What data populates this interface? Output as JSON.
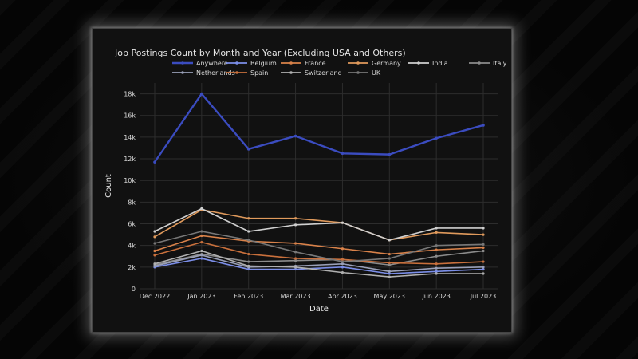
{
  "chart_data": {
    "type": "line",
    "title": "Job Postings Count by Month and Year (Excluding USA and Others)",
    "xlabel": "Date",
    "ylabel": "Count",
    "categories": [
      "Dec 2022",
      "Jan 2023",
      "Feb 2023",
      "Mar 2023",
      "Apr 2023",
      "May 2023",
      "Jun 2023",
      "Jul 2023"
    ],
    "ylim": [
      0,
      19000
    ],
    "yticks": [
      0,
      2000,
      4000,
      6000,
      8000,
      10000,
      12000,
      14000,
      16000,
      18000
    ],
    "ytick_labels": [
      "0",
      "2k",
      "4k",
      "6k",
      "8k",
      "10k",
      "12k",
      "14k",
      "16k",
      "18k"
    ],
    "grid": true,
    "legend_position": "top",
    "background": "#111111",
    "series": [
      {
        "name": "Anywhere",
        "color": "#3b4cc0",
        "values": [
          11700,
          18000,
          12900,
          14100,
          12500,
          12400,
          13900,
          15100
        ]
      },
      {
        "name": "Belgium",
        "color": "#7b8ee8",
        "values": [
          2000,
          2800,
          1800,
          1800,
          2000,
          1400,
          1600,
          1800
        ]
      },
      {
        "name": "France",
        "color": "#d9824a",
        "values": [
          3500,
          4900,
          4400,
          4200,
          3700,
          3200,
          3600,
          3800
        ]
      },
      {
        "name": "Germany",
        "color": "#e09a5c",
        "values": [
          4800,
          7300,
          6500,
          6500,
          6100,
          4500,
          5200,
          5000
        ]
      },
      {
        "name": "India",
        "color": "#cfcfcf",
        "values": [
          5300,
          7400,
          5300,
          5900,
          6100,
          4500,
          5600,
          5600
        ]
      },
      {
        "name": "Italy",
        "color": "#8c8c8c",
        "values": [
          2200,
          3200,
          2500,
          2600,
          2700,
          2200,
          3000,
          3500
        ]
      },
      {
        "name": "Netherlands",
        "color": "#9aa0b8",
        "values": [
          2100,
          3100,
          2000,
          2100,
          2300,
          1600,
          1900,
          2000
        ]
      },
      {
        "name": "Spain",
        "color": "#c9703c",
        "values": [
          3100,
          4300,
          3200,
          2800,
          2700,
          2400,
          2300,
          2500
        ]
      },
      {
        "name": "Switzerland",
        "color": "#b0b0b0",
        "values": [
          2300,
          3500,
          2100,
          2000,
          1500,
          1100,
          1400,
          1400
        ]
      },
      {
        "name": "UK",
        "color": "#777777",
        "values": [
          4200,
          5300,
          4500,
          3400,
          2500,
          2800,
          4000,
          4100
        ]
      }
    ]
  }
}
